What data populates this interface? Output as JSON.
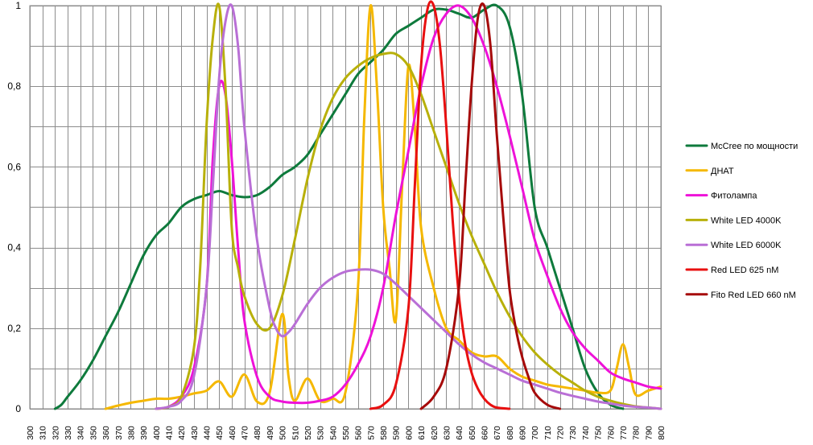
{
  "chart_data": {
    "type": "line",
    "title": "",
    "xlabel": "",
    "ylabel": "",
    "xlim": [
      300,
      800
    ],
    "ylim": [
      0,
      1
    ],
    "x_ticks": [
      300,
      310,
      320,
      330,
      340,
      350,
      360,
      370,
      380,
      390,
      400,
      410,
      420,
      430,
      440,
      450,
      460,
      470,
      480,
      490,
      500,
      510,
      520,
      530,
      540,
      550,
      560,
      570,
      580,
      590,
      600,
      610,
      620,
      630,
      640,
      650,
      660,
      670,
      680,
      690,
      700,
      710,
      720,
      730,
      740,
      750,
      760,
      770,
      780,
      790,
      800
    ],
    "x_tick_labels": [
      "300",
      "310",
      "320",
      "330",
      "340",
      "350",
      "360",
      "370",
      "380",
      "390",
      "400",
      "410",
      "420",
      "430",
      "440",
      "450",
      "460",
      "470",
      "480",
      "490",
      "500",
      "510",
      "520",
      "530",
      "540",
      "550",
      "560",
      "570",
      "580",
      "590",
      "600",
      "610",
      "620",
      "630",
      "640",
      "650",
      "660",
      "670",
      "680",
      "690",
      "700",
      "710",
      "720",
      "730",
      "740",
      "750",
      "760",
      "770",
      "780",
      "790",
      "800"
    ],
    "y_ticks": [
      0,
      0.2,
      0.4,
      0.6,
      0.8,
      1
    ],
    "y_tick_labels": [
      "0",
      "0,2",
      "0,4",
      "0,6",
      "0,8",
      "1"
    ],
    "grid": true,
    "legend_position": "right",
    "series": [
      {
        "name": "McCree по мощности",
        "color": "#0e7a3c",
        "x": [
          320,
          325,
          330,
          340,
          350,
          360,
          370,
          380,
          390,
          400,
          410,
          420,
          430,
          440,
          450,
          460,
          470,
          480,
          490,
          500,
          510,
          520,
          530,
          540,
          550,
          560,
          570,
          580,
          590,
          600,
          610,
          620,
          630,
          640,
          650,
          660,
          670,
          680,
          690,
          700,
          710,
          720,
          730,
          740,
          750,
          760,
          770
        ],
        "y": [
          0,
          0.01,
          0.03,
          0.07,
          0.12,
          0.18,
          0.24,
          0.31,
          0.38,
          0.43,
          0.46,
          0.5,
          0.52,
          0.53,
          0.54,
          0.53,
          0.525,
          0.53,
          0.55,
          0.58,
          0.6,
          0.63,
          0.68,
          0.73,
          0.78,
          0.83,
          0.86,
          0.89,
          0.93,
          0.95,
          0.97,
          0.99,
          0.99,
          0.98,
          0.97,
          0.99,
          1.0,
          0.95,
          0.78,
          0.5,
          0.4,
          0.3,
          0.2,
          0.1,
          0.04,
          0.01,
          0
        ]
      },
      {
        "name": "ДНАТ",
        "color": "#f5b800",
        "x": [
          360,
          370,
          380,
          390,
          400,
          410,
          420,
          430,
          440,
          450,
          460,
          470,
          480,
          490,
          500,
          505,
          510,
          520,
          530,
          540,
          550,
          560,
          565,
          570,
          575,
          580,
          585,
          590,
          595,
          600,
          605,
          610,
          620,
          630,
          640,
          650,
          660,
          670,
          680,
          690,
          700,
          710,
          720,
          730,
          740,
          750,
          760,
          765,
          770,
          775,
          780,
          790,
          800
        ],
        "y": [
          0,
          0.008,
          0.015,
          0.02,
          0.025,
          0.025,
          0.03,
          0.038,
          0.045,
          0.068,
          0.03,
          0.085,
          0.018,
          0.04,
          0.235,
          0.08,
          0.02,
          0.075,
          0.02,
          0.025,
          0.04,
          0.3,
          0.72,
          1.0,
          0.8,
          0.5,
          0.35,
          0.22,
          0.55,
          0.85,
          0.7,
          0.45,
          0.3,
          0.2,
          0.17,
          0.14,
          0.13,
          0.13,
          0.1,
          0.08,
          0.07,
          0.06,
          0.055,
          0.05,
          0.045,
          0.04,
          0.045,
          0.1,
          0.16,
          0.1,
          0.035,
          0.045,
          0.055
        ]
      },
      {
        "name": "Фитолампа",
        "color": "#ee12d8",
        "x": [
          400,
          410,
          420,
          430,
          440,
          445,
          450,
          455,
          460,
          465,
          470,
          480,
          490,
          500,
          510,
          520,
          530,
          540,
          550,
          560,
          570,
          580,
          590,
          600,
          610,
          620,
          630,
          640,
          650,
          660,
          670,
          680,
          690,
          700,
          710,
          720,
          730,
          740,
          750,
          760,
          770,
          780,
          790,
          800
        ],
        "y": [
          0,
          0.005,
          0.03,
          0.1,
          0.3,
          0.62,
          0.8,
          0.78,
          0.62,
          0.4,
          0.22,
          0.08,
          0.03,
          0.018,
          0.015,
          0.015,
          0.02,
          0.03,
          0.06,
          0.11,
          0.18,
          0.3,
          0.48,
          0.64,
          0.8,
          0.92,
          0.98,
          1.0,
          0.97,
          0.9,
          0.8,
          0.68,
          0.55,
          0.42,
          0.33,
          0.25,
          0.19,
          0.15,
          0.12,
          0.09,
          0.075,
          0.065,
          0.055,
          0.05
        ]
      },
      {
        "name": "White LED 4000K",
        "color": "#b8b00a",
        "x": [
          400,
          410,
          420,
          430,
          435,
          440,
          445,
          450,
          455,
          460,
          465,
          470,
          480,
          490,
          500,
          510,
          520,
          530,
          540,
          550,
          560,
          570,
          580,
          590,
          600,
          610,
          620,
          630,
          640,
          650,
          660,
          670,
          680,
          690,
          700,
          710,
          720,
          730,
          740,
          750,
          760,
          770,
          780,
          790,
          800
        ],
        "y": [
          0,
          0.005,
          0.03,
          0.15,
          0.35,
          0.7,
          0.92,
          1.0,
          0.8,
          0.45,
          0.35,
          0.28,
          0.21,
          0.2,
          0.28,
          0.42,
          0.57,
          0.69,
          0.77,
          0.82,
          0.85,
          0.87,
          0.88,
          0.88,
          0.85,
          0.78,
          0.69,
          0.6,
          0.51,
          0.43,
          0.36,
          0.29,
          0.23,
          0.18,
          0.14,
          0.11,
          0.085,
          0.065,
          0.045,
          0.03,
          0.02,
          0.012,
          0.006,
          0.003,
          0
        ]
      },
      {
        "name": "White LED 6000K",
        "color": "#b96fd6",
        "x": [
          400,
          410,
          420,
          430,
          440,
          445,
          450,
          455,
          460,
          465,
          470,
          480,
          490,
          495,
          500,
          505,
          510,
          520,
          530,
          540,
          550,
          560,
          570,
          580,
          590,
          600,
          610,
          620,
          630,
          640,
          650,
          660,
          670,
          680,
          690,
          700,
          710,
          720,
          730,
          740,
          750,
          760,
          770,
          780,
          790,
          800
        ],
        "y": [
          0,
          0.005,
          0.02,
          0.08,
          0.3,
          0.55,
          0.82,
          0.96,
          1.0,
          0.9,
          0.7,
          0.42,
          0.25,
          0.2,
          0.18,
          0.19,
          0.21,
          0.26,
          0.3,
          0.325,
          0.34,
          0.345,
          0.345,
          0.335,
          0.31,
          0.28,
          0.25,
          0.22,
          0.19,
          0.16,
          0.135,
          0.115,
          0.1,
          0.085,
          0.07,
          0.06,
          0.05,
          0.04,
          0.032,
          0.025,
          0.018,
          0.013,
          0.008,
          0.005,
          0.003,
          0
        ]
      },
      {
        "name": "Red LED 625 nM",
        "color": "#e81010",
        "x": [
          570,
          580,
          590,
          600,
          605,
          610,
          615,
          620,
          625,
          630,
          635,
          640,
          645,
          650,
          655,
          660,
          665,
          670,
          680
        ],
        "y": [
          0,
          0.01,
          0.06,
          0.25,
          0.55,
          0.85,
          0.99,
          1.0,
          0.9,
          0.7,
          0.47,
          0.28,
          0.16,
          0.09,
          0.05,
          0.025,
          0.01,
          0.003,
          0
        ]
      },
      {
        "name": "Fito Red LED 660 nM",
        "color": "#a60a0a",
        "x": [
          610,
          620,
          630,
          640,
          645,
          650,
          655,
          660,
          665,
          670,
          675,
          680,
          685,
          690,
          695,
          700,
          710,
          720
        ],
        "y": [
          0,
          0.03,
          0.1,
          0.3,
          0.55,
          0.8,
          0.97,
          1.0,
          0.9,
          0.68,
          0.48,
          0.3,
          0.2,
          0.13,
          0.08,
          0.04,
          0.01,
          0
        ]
      }
    ]
  }
}
